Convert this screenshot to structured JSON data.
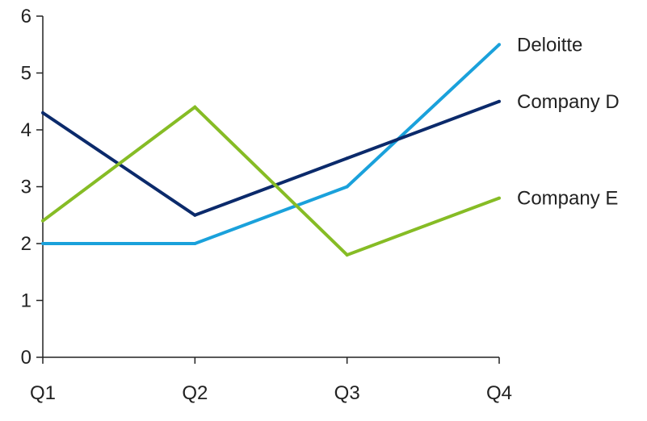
{
  "chart_data": {
    "type": "line",
    "title": "",
    "xlabel": "",
    "ylabel": "",
    "categories": [
      "Q1",
      "Q2",
      "Q3",
      "Q4"
    ],
    "ylim": [
      0,
      6
    ],
    "yticks": [
      "0",
      "1",
      "2",
      "3",
      "4",
      "5",
      "6"
    ],
    "grid": false,
    "legend": "direct-labels-right",
    "series": [
      {
        "name": "Deloitte",
        "color": "#1AA1DB",
        "values": [
          2.0,
          2.0,
          3.0,
          5.5
        ]
      },
      {
        "name": "Company D",
        "color": "#0B2A6B",
        "values": [
          4.3,
          2.5,
          3.5,
          4.5
        ]
      },
      {
        "name": "Company E",
        "color": "#86BC25",
        "values": [
          2.4,
          4.4,
          1.8,
          2.8
        ]
      }
    ]
  }
}
